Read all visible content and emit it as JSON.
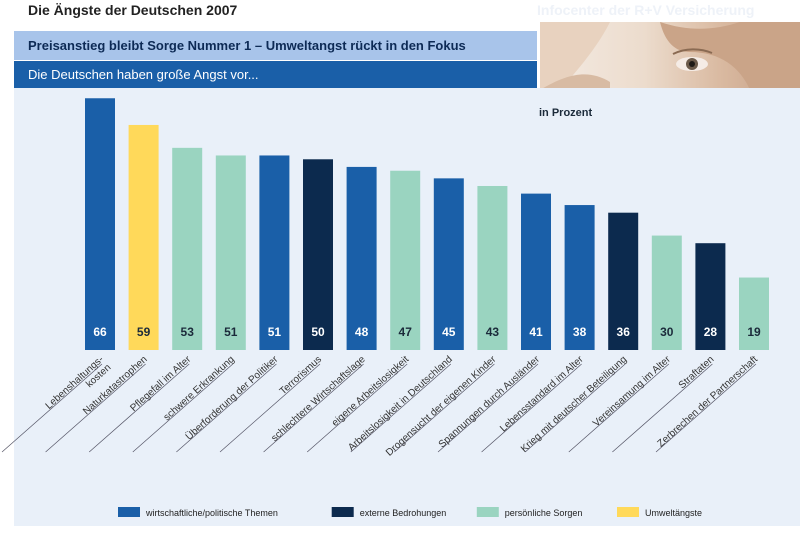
{
  "header": {
    "title": "Die Ängste der Deutschen 2007",
    "brand": "Infocenter der R+V Versicherung",
    "headline": "Preisanstieg bleibt Sorge Nummer 1 – Umweltangst rückt in den Fokus",
    "subheadline": "Die Deutschen haben große Angst vor..."
  },
  "colors": {
    "wirtschaftlich": "#1a5fa8",
    "extern": "#0c2a4e",
    "persoenlich": "#9ad4c0",
    "umwelt": "#ffd95a",
    "panel": "#e9f0f9"
  },
  "chart_data": {
    "type": "bar",
    "title": "",
    "ylabel": "in Prozent",
    "ylim": [
      0,
      70
    ],
    "grid": false,
    "legend_position": "bottom",
    "categories": [
      "Lebenshaltungs-\nkosten",
      "Naturkatastrophen",
      "Pflegefall im Alter",
      "schwere Erkrankung",
      "Überforderung der Politiker",
      "Terrorismus",
      "schlechtere Wirtschaftslage",
      "eigene Arbeitslosigkeit",
      "Arbeitslosigkeit in Deutschland",
      "Drogensucht der eigenen Kinder",
      "Spannungen durch Ausländer",
      "Lebensstandard im Alter",
      "Krieg mit deutscher Beteiligung",
      "Vereinsamung im Alter",
      "Straftaten",
      "Zerbrechen der Partnerschaft"
    ],
    "values": [
      66,
      59,
      53,
      51,
      51,
      50,
      48,
      47,
      45,
      43,
      41,
      38,
      36,
      30,
      28,
      19
    ],
    "groups": [
      "wirtschaftlich",
      "umwelt",
      "persoenlich",
      "persoenlich",
      "wirtschaftlich",
      "extern",
      "wirtschaftlich",
      "persoenlich",
      "wirtschaftlich",
      "persoenlich",
      "wirtschaftlich",
      "wirtschaftlich",
      "extern",
      "persoenlich",
      "extern",
      "persoenlich"
    ],
    "legend": [
      {
        "key": "wirtschaftlich",
        "label": "wirtschaftliche/politische Themen"
      },
      {
        "key": "extern",
        "label": "externe Bedrohungen"
      },
      {
        "key": "persoenlich",
        "label": "persönliche Sorgen"
      },
      {
        "key": "umwelt",
        "label": "Umweltängste"
      }
    ]
  }
}
